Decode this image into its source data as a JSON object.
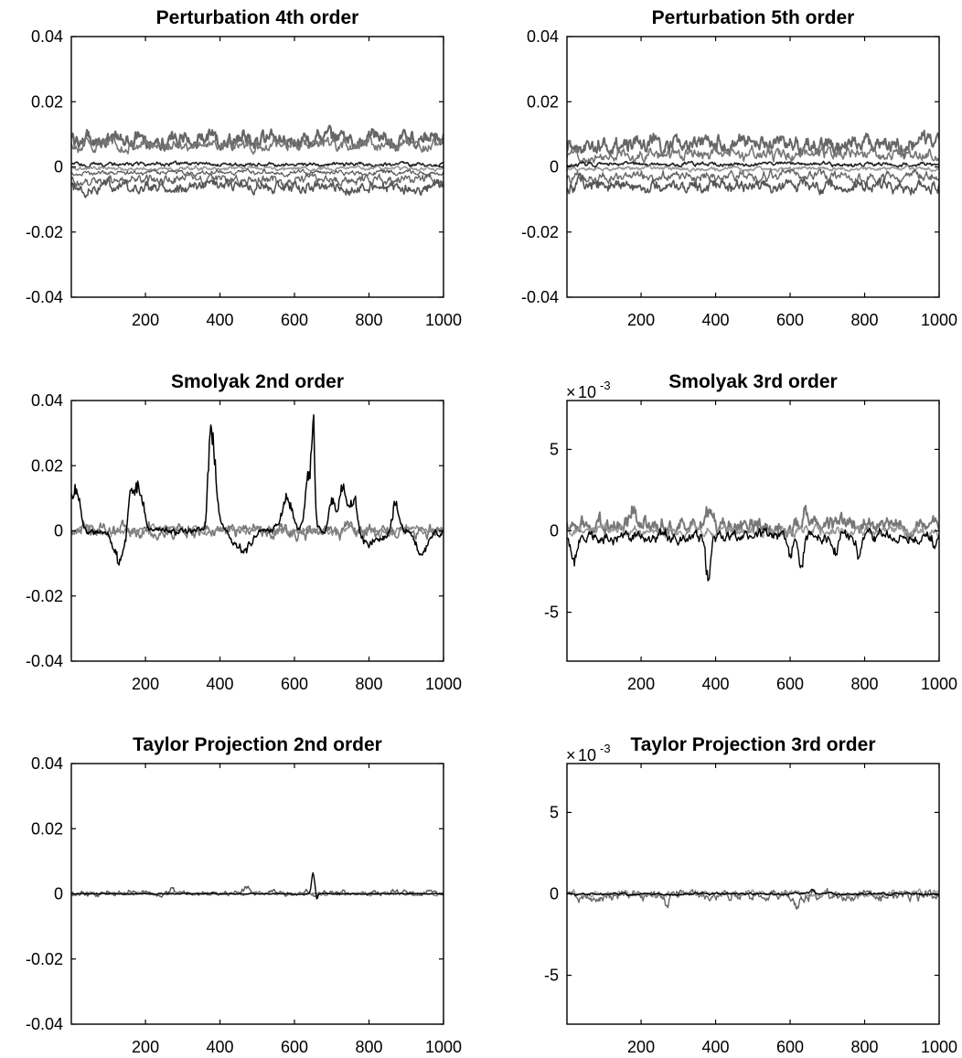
{
  "chart_data": [
    {
      "type": "line",
      "title": "Perturbation 4th order",
      "xlim": [
        1,
        1000
      ],
      "xticks": [
        "200",
        "400",
        "600",
        "800",
        "1000"
      ],
      "ylim": [
        -0.04,
        0.04
      ],
      "yticks": [
        "-0.04",
        "-0.02",
        "0",
        "0.02",
        "0.04"
      ],
      "multiplier": "",
      "grid": false,
      "series": [
        {
          "color": "#666666",
          "level": 0.0085,
          "noise": 0.0017,
          "width": 2.2
        },
        {
          "color": "#777777",
          "level": 0.0068,
          "noise": 0.0012,
          "width": 1.6
        },
        {
          "color": "#222222",
          "level": 0.0008,
          "noise": 0.0004,
          "width": 1.6
        },
        {
          "color": "#999999",
          "level": -0.0005,
          "noise": 0.0004,
          "width": 1.6
        },
        {
          "color": "#555555",
          "level": -0.0018,
          "noise": 0.0005,
          "width": 1.2
        },
        {
          "color": "#666666",
          "level": -0.004,
          "noise": 0.001,
          "width": 1.4
        },
        {
          "color": "#555555",
          "level": -0.0062,
          "noise": 0.0012,
          "width": 1.6
        }
      ]
    },
    {
      "type": "line",
      "title": "Perturbation 5th order",
      "xlim": [
        1,
        1000
      ],
      "xticks": [
        "200",
        "400",
        "600",
        "800",
        "1000"
      ],
      "ylim": [
        -0.04,
        0.04
      ],
      "yticks": [
        "-0.04",
        "-0.02",
        "0",
        "0.02",
        "0.04"
      ],
      "multiplier": "",
      "grid": false,
      "series": [
        {
          "color": "#666666",
          "level": 0.0068,
          "noise": 0.0018,
          "width": 2.0
        },
        {
          "color": "#777777",
          "level": 0.0038,
          "noise": 0.0012,
          "width": 1.6
        },
        {
          "color": "#222222",
          "level": 0.0008,
          "noise": 0.0004,
          "width": 1.6
        },
        {
          "color": "#999999",
          "level": -0.0006,
          "noise": 0.0004,
          "width": 1.6
        },
        {
          "color": "#666666",
          "level": -0.003,
          "noise": 0.001,
          "width": 1.4
        },
        {
          "color": "#555555",
          "level": -0.0058,
          "noise": 0.0013,
          "width": 1.6
        }
      ]
    },
    {
      "type": "line",
      "title": "Smolyak 2nd order",
      "xlim": [
        1,
        1000
      ],
      "xticks": [
        "200",
        "400",
        "600",
        "800",
        "1000"
      ],
      "ylim": [
        -0.04,
        0.04
      ],
      "yticks": [
        "-0.04",
        "-0.02",
        "0",
        "0.02",
        "0.04"
      ],
      "multiplier": "",
      "grid": false,
      "series": [
        {
          "color": "#777777",
          "level": 0.0,
          "noise": 0.0014,
          "width": 1.6
        },
        {
          "color": "#888888",
          "level": 0.0,
          "noise": 0.0009,
          "width": 1.4
        },
        {
          "color": "#000000",
          "level": 0.0,
          "noise": 0.0008,
          "width": 1.5,
          "spikes": [
            [
              10,
              0.013,
              18
            ],
            [
              130,
              -0.009,
              25
            ],
            [
              160,
              0.009,
              12
            ],
            [
              180,
              0.012,
              20
            ],
            [
              375,
              0.023,
              10
            ],
            [
              385,
              0.015,
              14
            ],
            [
              460,
              -0.006,
              30
            ],
            [
              580,
              0.01,
              20
            ],
            [
              640,
              0.018,
              14
            ],
            [
              650,
              0.025,
              5
            ],
            [
              700,
              0.01,
              10
            ],
            [
              730,
              0.014,
              16
            ],
            [
              760,
              0.011,
              12
            ],
            [
              800,
              -0.004,
              40
            ],
            [
              870,
              0.008,
              10
            ],
            [
              940,
              -0.007,
              20
            ]
          ]
        }
      ]
    },
    {
      "type": "line",
      "title": "Smolyak 3rd order",
      "xlim": [
        1,
        1000
      ],
      "xticks": [
        "200",
        "400",
        "600",
        "800",
        "1000"
      ],
      "ylim": [
        -8,
        8
      ],
      "yticks": [
        "-5",
        "0",
        "5"
      ],
      "multiplier": "10",
      "multiplier_exponent": "-3",
      "grid": false,
      "series": [
        {
          "color": "#777777",
          "level": 0.3,
          "noise": 0.35,
          "width": 2.0,
          "spikes": [
            [
              180,
              1.4,
              10
            ],
            [
              380,
              1.2,
              10
            ],
            [
              640,
              1.0,
              10
            ]
          ]
        },
        {
          "color": "#999999",
          "level": 0.0,
          "noise": 0.2,
          "width": 1.6
        },
        {
          "color": "#000000",
          "level": -0.3,
          "noise": 0.25,
          "width": 1.4,
          "spikes": [
            [
              20,
              -1.4,
              15
            ],
            [
              380,
              -2.6,
              8
            ],
            [
              600,
              -1.6,
              10
            ],
            [
              630,
              -1.8,
              10
            ],
            [
              720,
              -1.4,
              12
            ],
            [
              780,
              -1.2,
              12
            ],
            [
              990,
              -0.9,
              6
            ]
          ]
        }
      ]
    },
    {
      "type": "line",
      "title": "Taylor Projection 2nd order",
      "xlim": [
        1,
        1000
      ],
      "xticks": [
        "200",
        "400",
        "600",
        "800",
        "1000"
      ],
      "ylim": [
        -0.04,
        0.04
      ],
      "yticks": [
        "-0.04",
        "-0.02",
        "0",
        "0.02",
        "0.04"
      ],
      "multiplier": "",
      "grid": false,
      "series": [
        {
          "color": "#555555",
          "level": 0.0002,
          "noise": 0.0005,
          "width": 1.4,
          "spikes": [
            [
              270,
              0.002,
              6
            ],
            [
              470,
              0.0015,
              20
            ]
          ]
        },
        {
          "color": "#888888",
          "level": 0.0,
          "noise": 0.0003,
          "width": 1.4
        },
        {
          "color": "#000000",
          "level": 0.0,
          "noise": 0.0001,
          "width": 1.4,
          "spikes": [
            [
              650,
              0.006,
              6
            ],
            [
              660,
              -0.002,
              3
            ]
          ]
        }
      ]
    },
    {
      "type": "line",
      "title": "Taylor Projection 3rd order",
      "xlim": [
        1,
        1000
      ],
      "xticks": [
        "200",
        "400",
        "600",
        "800",
        "1000"
      ],
      "ylim": [
        -8,
        8
      ],
      "yticks": [
        "-5",
        "0",
        "5"
      ],
      "multiplier": "10",
      "multiplier_exponent": "-3",
      "grid": false,
      "series": [
        {
          "color": "#666666",
          "level": -0.1,
          "noise": 0.2,
          "width": 1.4,
          "spikes": [
            [
              270,
              -0.6,
              6
            ],
            [
              620,
              -0.5,
              10
            ]
          ]
        },
        {
          "color": "#999999",
          "level": 0.0,
          "noise": 0.12,
          "width": 1.4
        },
        {
          "color": "#000000",
          "level": 0.0,
          "noise": 0.05,
          "width": 1.4,
          "spikes": [
            [
              660,
              0.3,
              6
            ]
          ]
        }
      ]
    }
  ]
}
